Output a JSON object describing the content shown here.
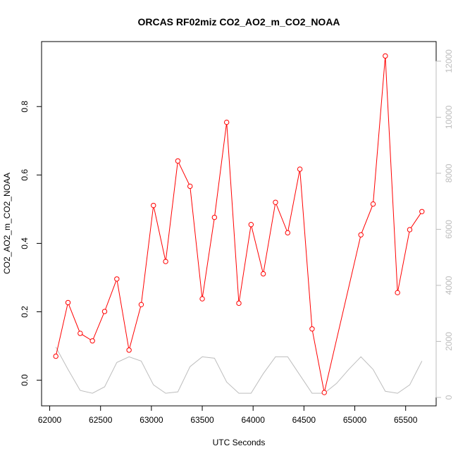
{
  "chart_data": {
    "type": "line",
    "title": "ORCAS RF02miz CO2_AO2_m_CO2_NOAA",
    "xlabel": "UTC Seconds",
    "ylabel": "CO2_AO2_m_CO2_NOAA",
    "xlim": [
      61920,
      65800
    ],
    "ylim": [
      -0.075,
      0.99
    ],
    "y2lim": [
      -300,
      12700
    ],
    "x_ticks": [
      62000,
      62500,
      63000,
      63500,
      64000,
      64500,
      65000,
      65500
    ],
    "y_ticks": [
      0.0,
      0.2,
      0.4,
      0.6,
      0.8
    ],
    "y_tick_labels": [
      "0.0",
      "0.2",
      "0.4",
      "0.6",
      "0.8"
    ],
    "y2_ticks": [
      0,
      2000,
      4000,
      6000,
      8000,
      10000,
      12000
    ],
    "y2_tick_labels": [
      "0",
      "2000",
      "4000",
      "6000",
      "8000",
      "10000",
      "12000"
    ],
    "grid": false,
    "series": [
      {
        "color": "#ff0000",
        "markers": true,
        "x": [
          62060,
          62180,
          62300,
          62420,
          62540,
          62660,
          62780,
          62900,
          63020,
          63140,
          63260,
          63380,
          63500,
          63620,
          63740,
          63860,
          63980,
          64100,
          64220,
          64340,
          64460,
          64580,
          64700,
          65060,
          65180,
          65300,
          65420,
          65540,
          65660
        ],
        "y": [
          0.07,
          0.227,
          0.137,
          0.115,
          0.201,
          0.296,
          0.088,
          0.221,
          0.511,
          0.347,
          0.641,
          0.567,
          0.238,
          0.476,
          0.754,
          0.225,
          0.455,
          0.311,
          0.52,
          0.431,
          0.617,
          0.15,
          -0.036,
          0.425,
          0.515,
          0.948,
          0.256,
          0.44,
          0.493
        ]
      },
      {
        "color": "#bdbdbd",
        "markers": false,
        "axis": "right",
        "x": [
          62060,
          62180,
          62300,
          62420,
          62540,
          62660,
          62780,
          62900,
          63020,
          63140,
          63260,
          63380,
          63500,
          63620,
          63740,
          63860,
          63980,
          64100,
          64220,
          64340,
          64460,
          64580,
          64700,
          64820,
          64940,
          65060,
          65180,
          65300,
          65420,
          65540,
          65660
        ],
        "y": [
          1800,
          1000,
          250,
          150,
          380,
          1250,
          1450,
          1300,
          450,
          150,
          200,
          1100,
          1450,
          1400,
          550,
          150,
          150,
          850,
          1450,
          1450,
          800,
          150,
          150,
          500,
          1000,
          1450,
          1000,
          220,
          150,
          450,
          1300
        ]
      }
    ]
  }
}
